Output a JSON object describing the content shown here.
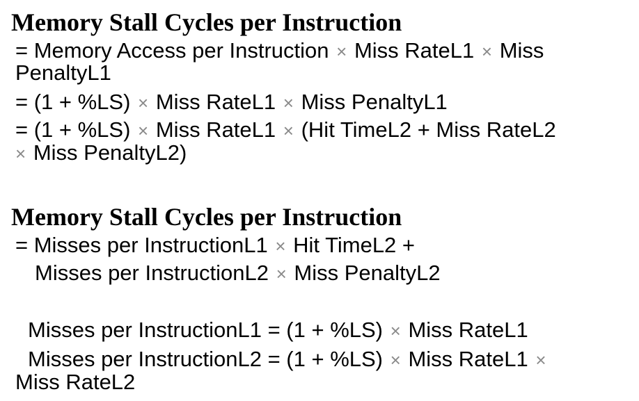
{
  "section1": {
    "heading": "Memory Stall Cycles per Instruction",
    "l1a": "= Memory Access per Instruction",
    "l1b": "Miss RateL1",
    "l1c": "Miss",
    "l1d": "PenaltyL1",
    "l2a": "= (1 + %LS)",
    "l2b": "Miss RateL1",
    "l2c": "Miss PenaltyL1",
    "l3a": "= (1 + %LS)",
    "l3b": "Miss RateL1",
    "l3c": "(Hit TimeL2 + Miss RateL2",
    "l3d": "Miss PenaltyL2)"
  },
  "section2": {
    "heading": "Memory Stall Cycles per Instruction",
    "l1a": "= Misses per InstructionL1",
    "l1b": "Hit TimeL2 +",
    "l2a": "Misses per InstructionL2",
    "l2b": "Miss PenaltyL2"
  },
  "section3": {
    "l1a": "Misses per InstructionL1 = (1 + %LS)",
    "l1b": "Miss RateL1",
    "l2a": "Misses per InstructionL2 = (1 + %LS)",
    "l2b": "Miss RateL1",
    "l2c": "Miss RateL2"
  },
  "symbols": {
    "times": "×"
  }
}
